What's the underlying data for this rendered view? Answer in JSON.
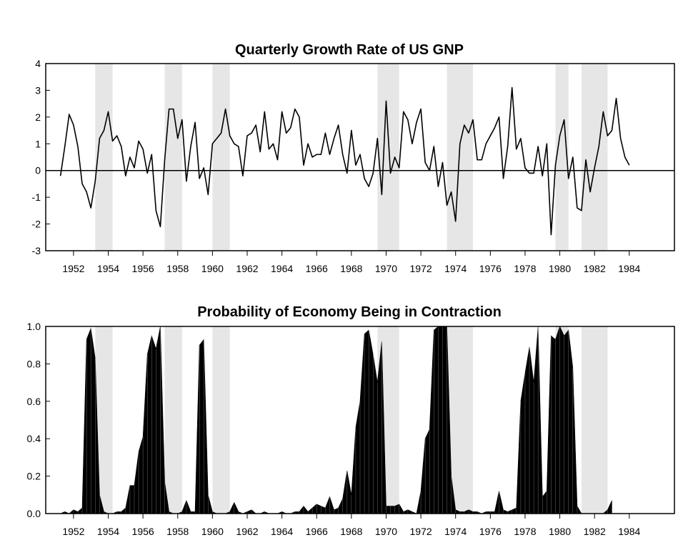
{
  "chart_data": [
    {
      "type": "line",
      "title": "Quarterly Growth Rate of US GNP",
      "xlabel": "",
      "ylabel": "",
      "xlim": [
        1950.4,
        1986.6
      ],
      "ylim": [
        -3,
        4
      ],
      "x_ticks": [
        "1952",
        "1954",
        "1956",
        "1958",
        "1960",
        "1962",
        "1964",
        "1966",
        "1968",
        "1970",
        "1972",
        "1974",
        "1976",
        "1978",
        "1980",
        "1982",
        "1984"
      ],
      "y_ticks": [
        "-3",
        "-2",
        "-1",
        "0",
        "1",
        "2",
        "3",
        "4"
      ],
      "zero_line": 0,
      "recessions": [
        [
          1953.25,
          1954.25
        ],
        [
          1957.25,
          1958.25
        ],
        [
          1960.0,
          1961.0
        ],
        [
          1969.5,
          1970.75
        ],
        [
          1973.5,
          1975.0
        ],
        [
          1979.75,
          1980.5
        ],
        [
          1981.25,
          1982.75
        ]
      ],
      "recession_color": "#e6e6e6",
      "line_color": "#000000",
      "series": [
        {
          "x0": 1951.25,
          "step": 0.25,
          "values": [
            -0.2,
            0.9,
            2.1,
            1.7,
            0.9,
            -0.5,
            -0.8,
            -1.4,
            -0.4,
            1.2,
            1.5,
            2.2,
            1.1,
            1.3,
            0.9,
            -0.2,
            0.5,
            0.1,
            1.1,
            0.8,
            -0.1,
            0.6,
            -1.5,
            -2.1,
            0.4,
            2.3,
            2.3,
            1.2,
            1.9,
            -0.4,
            0.9,
            1.8,
            -0.3,
            0.1,
            -0.9,
            1.0,
            1.2,
            1.4,
            2.3,
            1.3,
            1.0,
            0.9,
            -0.2,
            1.3,
            1.4,
            1.7,
            0.7,
            2.2,
            0.8,
            1.0,
            0.4,
            2.2,
            1.4,
            1.6,
            2.3,
            2.0,
            0.2,
            1.0,
            0.5,
            0.6,
            0.6,
            1.4,
            0.6,
            1.2,
            1.7,
            0.6,
            -0.1,
            1.5,
            0.2,
            0.6,
            -0.3,
            -0.6,
            -0.1,
            1.2,
            -0.9,
            2.6,
            -0.1,
            0.5,
            0.1,
            2.2,
            1.9,
            1.0,
            1.8,
            2.3,
            0.3,
            0.0,
            0.9,
            -0.6,
            0.3,
            -1.3,
            -0.8,
            -1.9,
            1.0,
            1.7,
            1.4,
            1.9,
            0.4,
            0.4,
            1.0,
            1.3,
            1.6,
            2.0,
            -0.3,
            0.9,
            3.1,
            0.8,
            1.2,
            0.1,
            -0.1,
            -0.1,
            0.9,
            -0.2,
            1.0,
            -2.4,
            0.2,
            1.3,
            1.9,
            -0.3,
            0.5,
            -1.4,
            -1.5,
            0.4,
            -0.8,
            0.1,
            0.9,
            2.2,
            1.3,
            1.5,
            2.7,
            1.2,
            0.5,
            0.2
          ]
        }
      ]
    },
    {
      "type": "area",
      "title": "Probability of Economy Being in Contraction",
      "xlabel": "",
      "ylabel": "",
      "xlim": [
        1950.4,
        1986.6
      ],
      "ylim": [
        0,
        1
      ],
      "x_ticks": [
        "1952",
        "1954",
        "1956",
        "1958",
        "1960",
        "1962",
        "1964",
        "1966",
        "1968",
        "1970",
        "1972",
        "1974",
        "1976",
        "1978",
        "1980",
        "1982",
        "1984"
      ],
      "y_ticks": [
        "0.0",
        "0.2",
        "0.4",
        "0.6",
        "0.8",
        "1.0"
      ],
      "recessions": [
        [
          1953.25,
          1954.25
        ],
        [
          1957.25,
          1958.25
        ],
        [
          1960.0,
          1961.0
        ],
        [
          1969.5,
          1970.75
        ],
        [
          1973.5,
          1975.0
        ],
        [
          1979.75,
          1980.5
        ],
        [
          1981.25,
          1982.75
        ]
      ],
      "recession_color": "#e6e6e6",
      "fill_color": "#000000",
      "series": [
        {
          "x0": 1951.25,
          "step": 0.25,
          "values": [
            0.0,
            0.01,
            0.0,
            0.02,
            0.01,
            0.03,
            0.93,
            0.99,
            0.83,
            0.1,
            0.01,
            0.0,
            0.0,
            0.01,
            0.01,
            0.03,
            0.15,
            0.15,
            0.33,
            0.41,
            0.85,
            0.95,
            0.88,
            1.0,
            0.17,
            0.01,
            0.0,
            0.0,
            0.01,
            0.07,
            0.01,
            0.01,
            0.9,
            0.93,
            0.1,
            0.01,
            0.0,
            0.0,
            0.0,
            0.01,
            0.06,
            0.01,
            0.0,
            0.01,
            0.02,
            0.0,
            0.0,
            0.01,
            0.0,
            0.0,
            0.0,
            0.01,
            0.0,
            0.0,
            0.01,
            0.01,
            0.04,
            0.01,
            0.03,
            0.05,
            0.04,
            0.03,
            0.09,
            0.02,
            0.03,
            0.08,
            0.23,
            0.1,
            0.46,
            0.6,
            0.96,
            0.98,
            0.85,
            0.7,
            0.92,
            0.04,
            0.04,
            0.04,
            0.05,
            0.01,
            0.02,
            0.01,
            0.0,
            0.12,
            0.4,
            0.45,
            0.98,
            1.0,
            1.0,
            1.0,
            0.2,
            0.02,
            0.01,
            0.01,
            0.02,
            0.01,
            0.01,
            0.0,
            0.01,
            0.01,
            0.01,
            0.12,
            0.02,
            0.01,
            0.02,
            0.03,
            0.6,
            0.75,
            0.89,
            0.7,
            1.0,
            0.09,
            0.12,
            0.95,
            0.93,
            1.0,
            0.95,
            0.98,
            0.78,
            0.04,
            0.0,
            0.0,
            0.0,
            0.0,
            0.0,
            0.0,
            0.02,
            0.07
          ]
        }
      ]
    }
  ]
}
